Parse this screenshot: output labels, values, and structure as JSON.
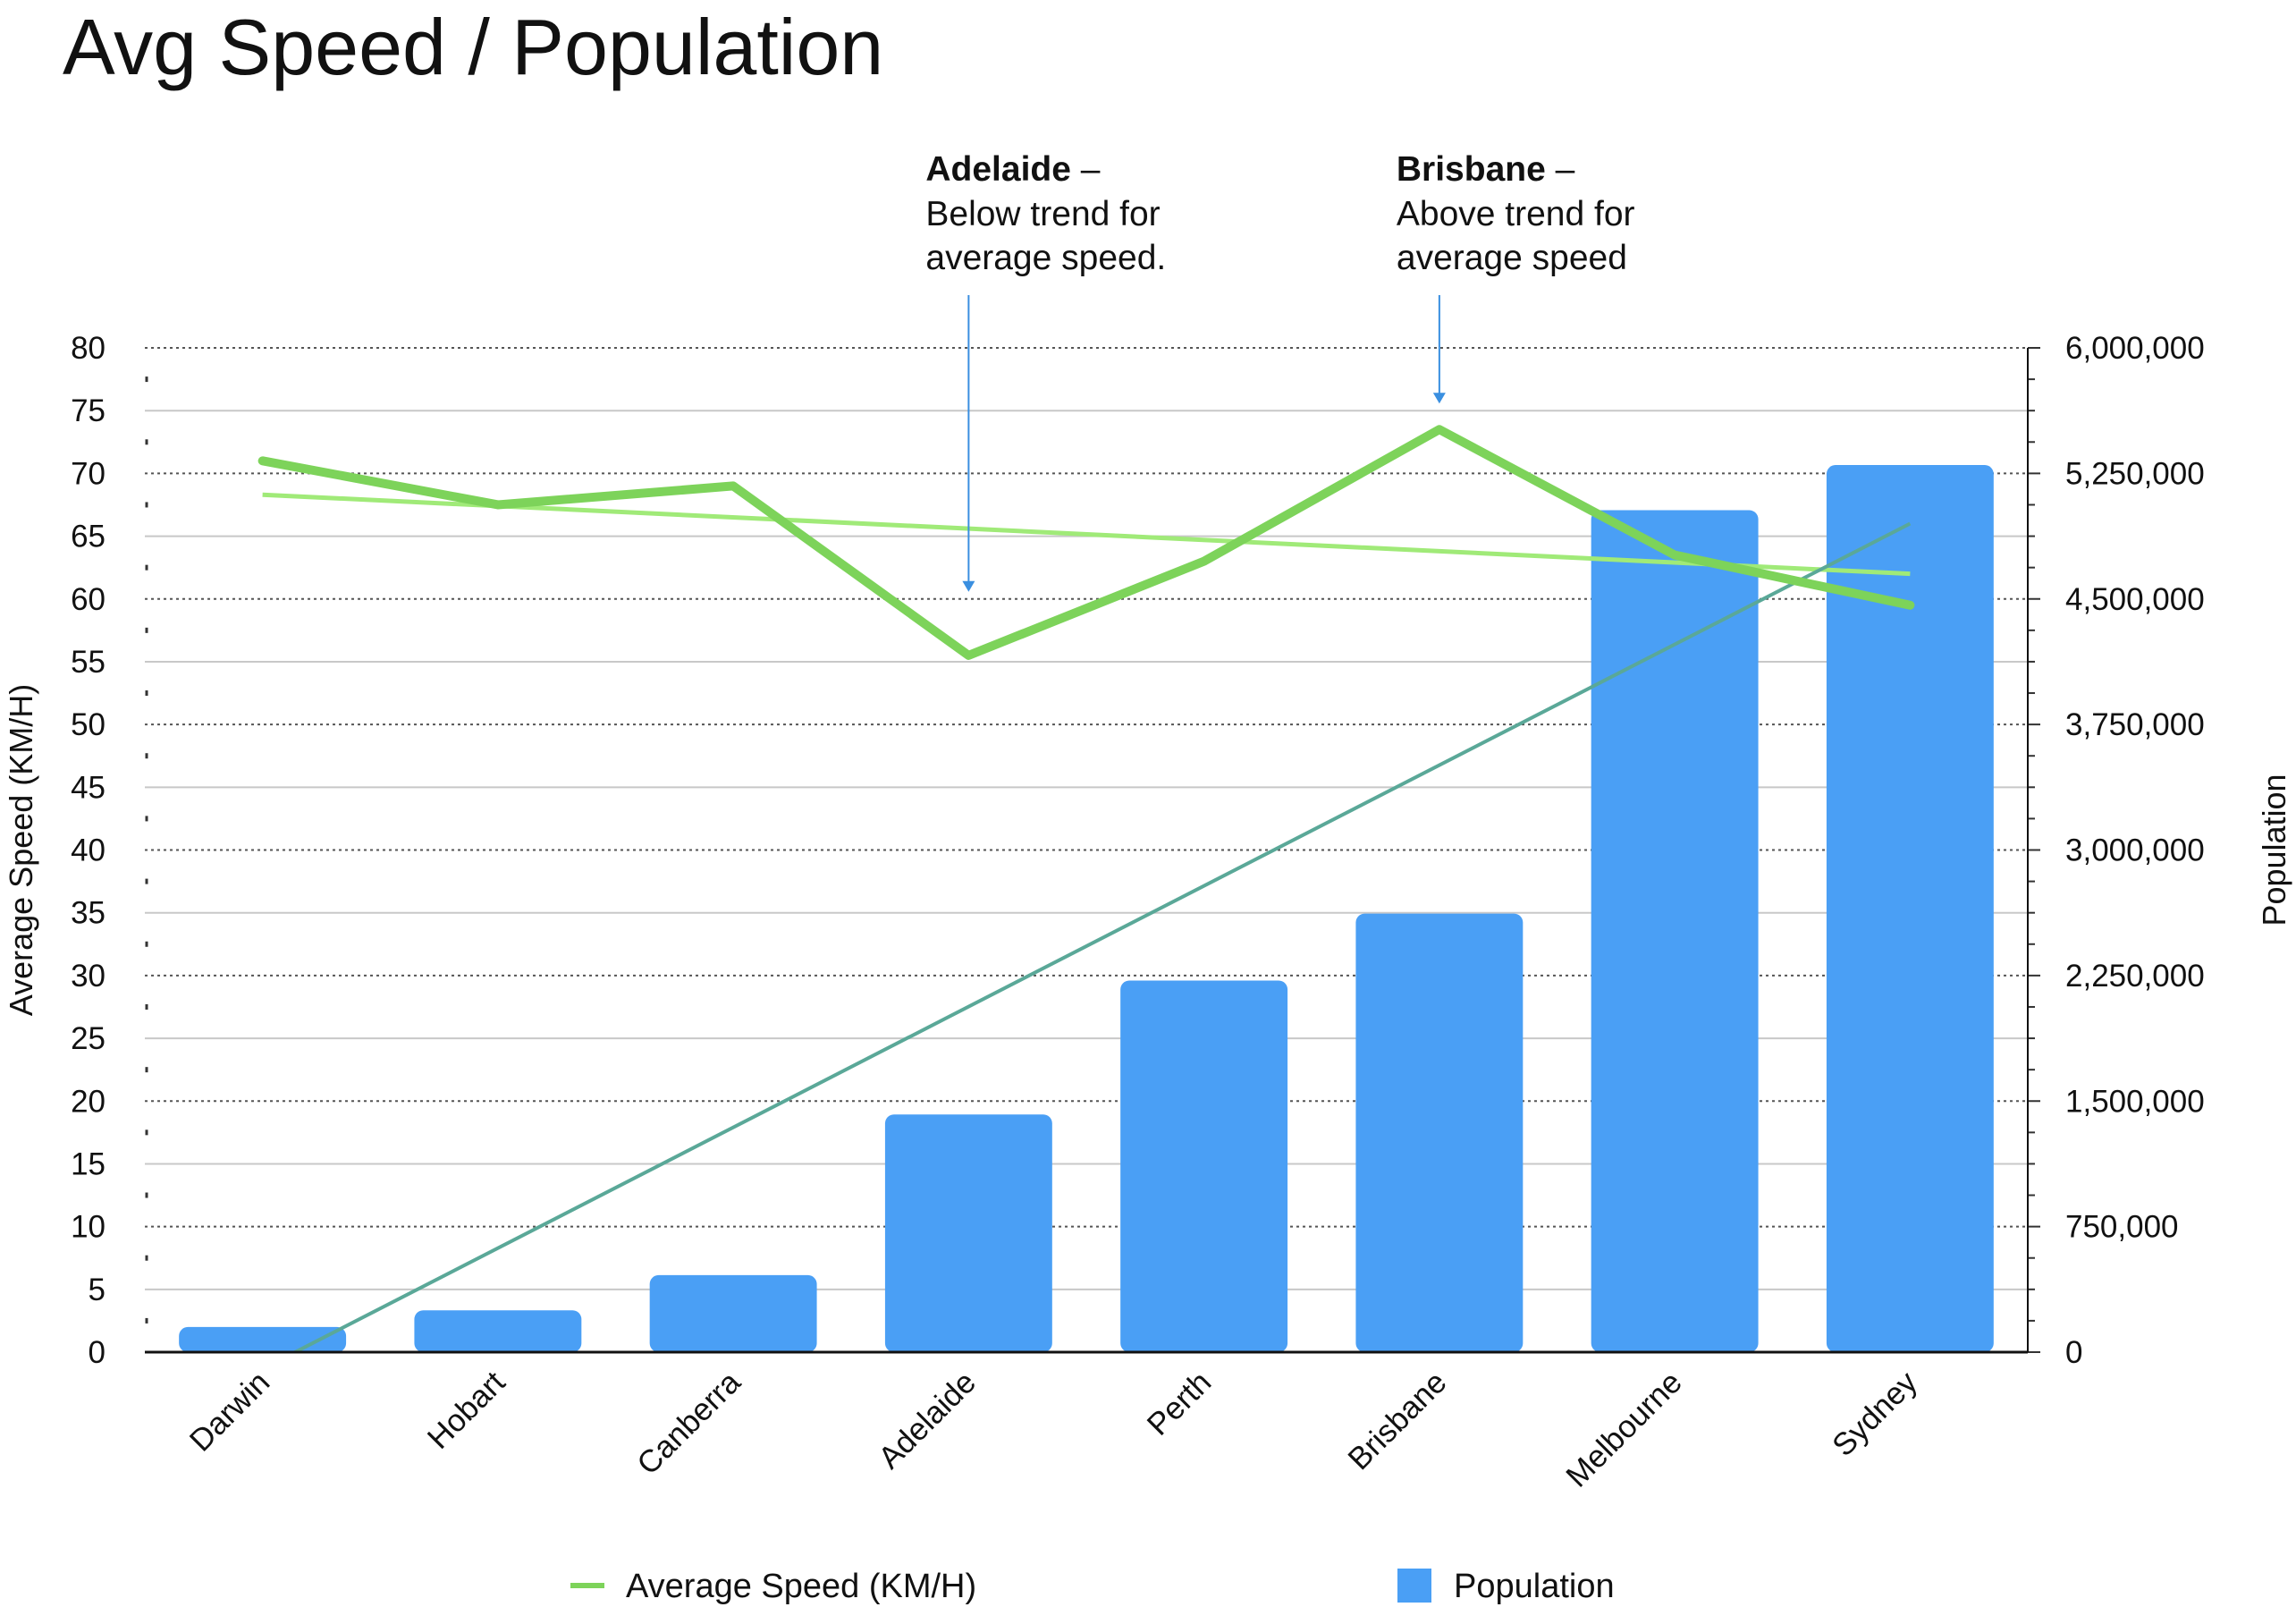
{
  "chart_data": {
    "type": "bar",
    "title": "Avg Speed / Population",
    "categories": [
      "Darwin",
      "Hobart",
      "Canberra",
      "Adelaide",
      "Perth",
      "Brisbane",
      "Melbourne",
      "Sydney"
    ],
    "series": [
      {
        "name": "Population",
        "type": "bar",
        "axis": "right",
        "color": "#4a9ff5",
        "values": [
          150000,
          250000,
          460000,
          1420000,
          2220000,
          2620000,
          5030000,
          5300000
        ]
      },
      {
        "name": "Average Speed (KM/H)",
        "type": "line",
        "axis": "left",
        "color": "#7dd35a",
        "values": [
          71,
          67.5,
          69,
          55.5,
          63,
          73.5,
          63.5,
          59.5
        ]
      }
    ],
    "trendlines": [
      {
        "series": "Average Speed (KM/H)",
        "axis": "left",
        "color": "#a0ea78",
        "start": 68.3,
        "end": 62
      },
      {
        "series": "Population",
        "axis": "right",
        "color": "#5aa898",
        "start": -100000,
        "end": 4950000
      }
    ],
    "y_left": {
      "label": "Average Speed (KM/H)",
      "min": 0,
      "max": 80,
      "step": 5,
      "ticks": [
        "0",
        "5",
        "10",
        "15",
        "20",
        "25",
        "30",
        "35",
        "40",
        "45",
        "50",
        "55",
        "60",
        "65",
        "70",
        "75",
        "80"
      ]
    },
    "y_right": {
      "label": "Population",
      "min": 0,
      "max": 6000000,
      "step": 750000,
      "ticks": [
        "0",
        "750,000",
        "1,500,000",
        "2,250,000",
        "3,000,000",
        "3,750,000",
        "4,500,000",
        "5,250,000",
        "6,000,000"
      ]
    },
    "annotations": [
      {
        "category": "Adelaide",
        "bold": "Adelaide",
        "dash": " –",
        "lines": [
          "Below trend for",
          "average speed."
        ],
        "target_value": 60
      },
      {
        "category": "Brisbane",
        "bold": "Brisbane",
        "dash": " –",
        "lines": [
          "Above trend for",
          "average speed"
        ],
        "target_value": 75
      }
    ],
    "legend": {
      "position": "bottom",
      "items": [
        {
          "label": "Average Speed (KM/H)",
          "kind": "line",
          "color": "#7dd35a"
        },
        {
          "label": "Population",
          "kind": "square",
          "color": "#4a9ff5"
        }
      ]
    },
    "grid": true
  }
}
